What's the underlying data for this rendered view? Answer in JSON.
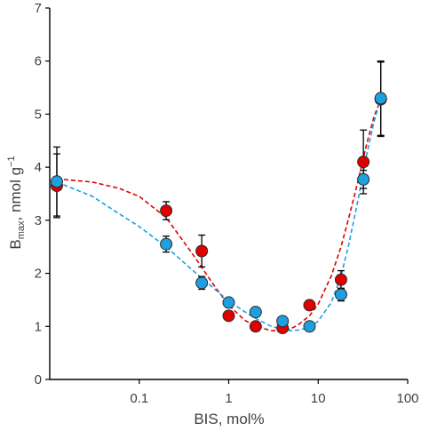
{
  "chart_data": {
    "type": "scatter",
    "title": "",
    "xlabel": "BIS, mol%",
    "ylabel_main": "B",
    "ylabel_sub": "max",
    "ylabel_rest": ", nmol g",
    "ylabel_sup": "−1",
    "xscale": "log",
    "xlim": [
      0.01,
      100
    ],
    "ylim": [
      0,
      7
    ],
    "x_ticks": [
      0.1,
      1,
      10,
      100
    ],
    "x_tick_labels": [
      "0.1",
      "1",
      "10",
      "100"
    ],
    "y_ticks": [
      0,
      1,
      2,
      3,
      4,
      5,
      6,
      7
    ],
    "y_tick_labels": [
      "0",
      "1",
      "2",
      "3",
      "4",
      "5",
      "6",
      "7"
    ],
    "grid": false,
    "legend": "none",
    "series": [
      {
        "color": "#e00000",
        "x": [
          0.012,
          0.2,
          0.5,
          1,
          2,
          4,
          8,
          18,
          32,
          50
        ],
        "y": [
          3.65,
          3.18,
          2.42,
          1.2,
          1.0,
          0.97,
          1.4,
          1.88,
          4.1,
          5.28
        ],
        "err": [
          0.6,
          0.17,
          0.3,
          0,
          0,
          0,
          0,
          0.17,
          0.6,
          0.7
        ],
        "fit": {
          "x": [
            0.012,
            0.03,
            0.06,
            0.1,
            0.2,
            0.4,
            0.7,
            1,
            1.5,
            2,
            3,
            4,
            5,
            6,
            8,
            10,
            14,
            18,
            22,
            28,
            35,
            42,
            50
          ],
          "y": [
            3.78,
            3.72,
            3.6,
            3.45,
            3.05,
            2.35,
            1.75,
            1.4,
            1.12,
            1.0,
            0.92,
            0.92,
            0.96,
            1.03,
            1.2,
            1.42,
            1.95,
            2.5,
            3.05,
            3.75,
            4.45,
            4.95,
            5.28
          ]
        }
      },
      {
        "color": "#1ea0e0",
        "x": [
          0.012,
          0.2,
          0.5,
          1,
          2,
          4,
          8,
          18,
          32,
          50
        ],
        "y": [
          3.73,
          2.55,
          1.82,
          1.45,
          1.27,
          1.1,
          1.0,
          1.6,
          3.77,
          5.3
        ],
        "err": [
          0.65,
          0.15,
          0.12,
          0,
          0,
          0,
          0,
          0.12,
          0.17,
          0.7
        ],
        "fit": {
          "x": [
            0.012,
            0.03,
            0.06,
            0.1,
            0.2,
            0.4,
            0.7,
            1,
            1.5,
            2,
            3,
            4,
            5,
            6,
            8,
            10,
            14,
            18,
            22,
            28,
            35,
            42,
            50
          ],
          "y": [
            3.72,
            3.45,
            3.12,
            2.88,
            2.5,
            2.05,
            1.7,
            1.48,
            1.28,
            1.15,
            1.0,
            0.94,
            0.92,
            0.93,
            0.98,
            1.1,
            1.45,
            1.95,
            2.55,
            3.4,
            4.25,
            4.85,
            5.3
          ]
        }
      }
    ]
  }
}
